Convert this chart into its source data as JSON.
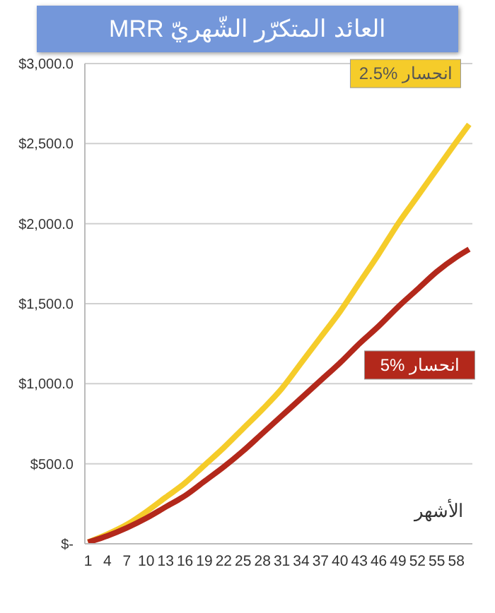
{
  "chart_data": {
    "type": "line",
    "title": "العائد المتكرّر الشّهريّ MRR",
    "xlabel": "الأشهر",
    "x": [
      1,
      4,
      7,
      10,
      13,
      16,
      19,
      22,
      25,
      28,
      31,
      34,
      37,
      40,
      43,
      46,
      49,
      52,
      55,
      58,
      60
    ],
    "series": [
      {
        "name": "2.5% انحسار",
        "color": "#f5cc2a",
        "values": [
          10,
          60,
          120,
          200,
          290,
          380,
          490,
          600,
          720,
          840,
          970,
          1130,
          1290,
          1450,
          1630,
          1810,
          2000,
          2170,
          2340,
          2510,
          2620
        ]
      },
      {
        "name": "5% انحسار",
        "color": "#b3281b",
        "values": [
          10,
          50,
          100,
          160,
          230,
          300,
          390,
          480,
          580,
          690,
          800,
          910,
          1020,
          1130,
          1250,
          1360,
          1480,
          1590,
          1700,
          1790,
          1840
        ]
      }
    ],
    "xlim": [
      0.5,
      60.5
    ],
    "xticks": [
      1,
      4,
      7,
      10,
      13,
      16,
      19,
      22,
      25,
      28,
      31,
      34,
      37,
      40,
      43,
      46,
      49,
      52,
      55,
      58
    ],
    "ylim": [
      0,
      3000
    ],
    "yticks": [
      {
        "value": 0,
        "label": "$-"
      },
      {
        "value": 500,
        "label": "$500.0"
      },
      {
        "value": 1000,
        "label": "$1,000.0"
      },
      {
        "value": 1500,
        "label": "$1,500.0"
      },
      {
        "value": 2000,
        "label": "$2,000.0"
      },
      {
        "value": 2500,
        "label": "$2,500.0"
      },
      {
        "value": 3000,
        "label": "$3,000.0"
      }
    ],
    "grid": "y",
    "legend": false,
    "marker": "none",
    "line_style": "solid"
  }
}
